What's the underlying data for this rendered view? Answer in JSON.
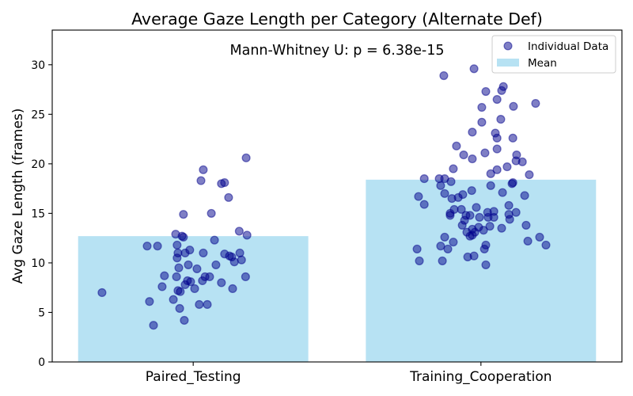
{
  "chart_data": {
    "type": "bar",
    "title": "Average Gaze Length per Category (Alternate Def)",
    "ylabel": "Avg Gaze Length (frames)",
    "categories": [
      "Paired_Testing",
      "Training_Cooperation"
    ],
    "xlim": [
      -0.49,
      1.49
    ],
    "ylim": [
      0,
      33.5
    ],
    "yticks": [
      0,
      5,
      10,
      15,
      20,
      25,
      30
    ],
    "grid": false,
    "legend": "top-right",
    "annotation": "Mann-Whitney U: p = 6.38e-15",
    "series": [
      {
        "name": "Individual Data",
        "type": "scatter",
        "color": "#00008b",
        "points": [
          [
            -0.317,
            7.0
          ],
          [
            -0.16,
            11.7
          ],
          [
            -0.124,
            11.7
          ],
          [
            -0.152,
            6.1
          ],
          [
            -0.138,
            3.7
          ],
          [
            -0.108,
            7.6
          ],
          [
            -0.1,
            8.7
          ],
          [
            -0.069,
            6.3
          ],
          [
            -0.061,
            12.9
          ],
          [
            -0.058,
            8.6
          ],
          [
            -0.056,
            11.8
          ],
          [
            -0.056,
            10.5
          ],
          [
            -0.053,
            11.0
          ],
          [
            -0.05,
            9.5
          ],
          [
            -0.053,
            7.2
          ],
          [
            -0.045,
            7.1
          ],
          [
            -0.047,
            5.4
          ],
          [
            -0.039,
            12.7
          ],
          [
            -0.034,
            12.6
          ],
          [
            -0.034,
            14.9
          ],
          [
            -0.031,
            4.2
          ],
          [
            -0.028,
            7.8
          ],
          [
            -0.02,
            8.2
          ],
          [
            -0.017,
            9.8
          ],
          [
            -0.028,
            11.0
          ],
          [
            -0.012,
            11.3
          ],
          [
            -0.009,
            8.1
          ],
          [
            0.005,
            7.4
          ],
          [
            0.013,
            9.4
          ],
          [
            0.021,
            5.8
          ],
          [
            0.027,
            18.3
          ],
          [
            0.035,
            19.4
          ],
          [
            0.032,
            8.2
          ],
          [
            0.035,
            11.0
          ],
          [
            0.041,
            8.6
          ],
          [
            0.049,
            5.8
          ],
          [
            0.057,
            8.6
          ],
          [
            0.063,
            15.0
          ],
          [
            0.074,
            12.3
          ],
          [
            0.079,
            9.8
          ],
          [
            0.098,
            18.0
          ],
          [
            0.109,
            18.1
          ],
          [
            0.098,
            8.0
          ],
          [
            0.109,
            10.9
          ],
          [
            0.123,
            16.6
          ],
          [
            0.126,
            10.7
          ],
          [
            0.134,
            10.6
          ],
          [
            0.137,
            7.4
          ],
          [
            0.143,
            10.1
          ],
          [
            0.16,
            13.2
          ],
          [
            0.162,
            11.0
          ],
          [
            0.168,
            10.3
          ],
          [
            0.182,
            8.6
          ],
          [
            0.184,
            20.6
          ],
          [
            0.187,
            12.8
          ],
          [
            0.778,
            11.4
          ],
          [
            0.783,
            16.7
          ],
          [
            0.803,
            15.9
          ],
          [
            0.803,
            18.5
          ],
          [
            0.786,
            10.2
          ],
          [
            0.855,
            18.5
          ],
          [
            0.86,
            17.8
          ],
          [
            0.86,
            11.7
          ],
          [
            0.866,
            10.2
          ],
          [
            0.871,
            28.9
          ],
          [
            0.874,
            18.5
          ],
          [
            0.874,
            12.6
          ],
          [
            0.874,
            17.0
          ],
          [
            0.885,
            11.4
          ],
          [
            0.893,
            15.0
          ],
          [
            0.893,
            14.8
          ],
          [
            0.896,
            18.2
          ],
          [
            0.899,
            16.5
          ],
          [
            0.904,
            19.5
          ],
          [
            0.904,
            12.1
          ],
          [
            0.907,
            15.4
          ],
          [
            0.915,
            21.8
          ],
          [
            0.921,
            16.6
          ],
          [
            0.932,
            15.4
          ],
          [
            0.935,
            13.8
          ],
          [
            0.937,
            16.9
          ],
          [
            0.94,
            20.9
          ],
          [
            0.943,
            14.3
          ],
          [
            0.948,
            14.8
          ],
          [
            0.954,
            10.6
          ],
          [
            0.951,
            13.1
          ],
          [
            0.962,
            14.8
          ],
          [
            0.968,
            17.3
          ],
          [
            0.97,
            23.2
          ],
          [
            0.97,
            12.8
          ],
          [
            0.97,
            13.4
          ],
          [
            0.97,
            20.5
          ],
          [
            0.976,
            29.6
          ],
          [
            0.979,
            13.1
          ],
          [
            0.976,
            10.7
          ],
          [
            0.984,
            15.6
          ],
          [
            0.992,
            13.6
          ],
          [
            0.995,
            14.6
          ],
          [
            1.003,
            25.7
          ],
          [
            1.003,
            24.2
          ],
          [
            1.009,
            13.3
          ],
          [
            1.012,
            11.4
          ],
          [
            1.014,
            21.1
          ],
          [
            1.017,
            27.3
          ],
          [
            1.017,
            11.8
          ],
          [
            1.017,
            9.8
          ],
          [
            1.023,
            15.1
          ],
          [
            1.025,
            14.6
          ],
          [
            1.031,
            13.7
          ],
          [
            1.034,
            17.8
          ],
          [
            1.034,
            19.0
          ],
          [
            1.045,
            15.2
          ],
          [
            1.045,
            14.6
          ],
          [
            1.05,
            23.1
          ],
          [
            1.056,
            26.5
          ],
          [
            1.056,
            19.4
          ],
          [
            1.056,
            22.6
          ],
          [
            1.056,
            21.5
          ],
          [
            1.069,
            24.5
          ],
          [
            1.072,
            13.5
          ],
          [
            1.075,
            17.1
          ],
          [
            1.078,
            27.8
          ],
          [
            1.072,
            27.4
          ],
          [
            1.091,
            19.7
          ],
          [
            1.097,
            15.8
          ],
          [
            1.097,
            14.9
          ],
          [
            1.1,
            14.4
          ],
          [
            1.108,
            18.0
          ],
          [
            1.111,
            22.6
          ],
          [
            1.113,
            25.8
          ],
          [
            1.122,
            20.3
          ],
          [
            1.124,
            20.9
          ],
          [
            1.122,
            15.1
          ],
          [
            1.144,
            20.2
          ],
          [
            1.152,
            16.8
          ],
          [
            1.157,
            13.8
          ],
          [
            1.163,
            12.2
          ],
          [
            1.168,
            18.9
          ],
          [
            1.19,
            26.1
          ],
          [
            1.204,
            12.6
          ],
          [
            1.226,
            11.8
          ],
          [
            0.962,
            12.7
          ],
          [
            1.111,
            18.1
          ]
        ]
      },
      {
        "name": "Mean",
        "type": "bar",
        "color": "#87ceeb",
        "values": [
          12.7,
          18.4
        ]
      }
    ]
  }
}
